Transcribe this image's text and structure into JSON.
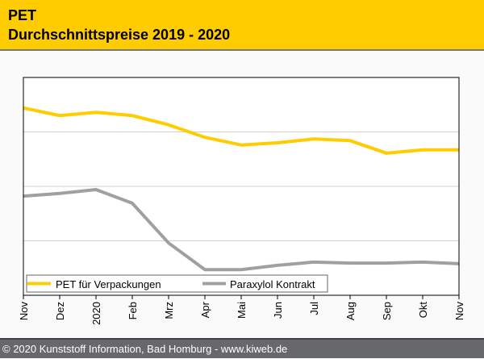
{
  "header": {
    "title": "PET",
    "subtitle": "Durchschnittspreise 2019 - 2020"
  },
  "footer": {
    "text": "© 2020 Kunststoff Information, Bad Homburg - www.kiweb.de"
  },
  "chart_data": {
    "type": "line",
    "title": "PET Durchschnittspreise 2019 - 2020",
    "xlabel": "",
    "ylabel": "",
    "categories": [
      "Nov",
      "Dez",
      "2020",
      "Feb",
      "Mrz",
      "Apr",
      "Mai",
      "Jun",
      "Jul",
      "Aug",
      "Sep",
      "Okt",
      "Nov"
    ],
    "ylim": [
      0,
      4
    ],
    "grid": true,
    "legend": "bottom-left",
    "series": [
      {
        "name": "PET für Verpackungen",
        "color": "#ffcc00",
        "values": [
          3.44,
          3.3,
          3.36,
          3.3,
          3.13,
          2.9,
          2.76,
          2.8,
          2.87,
          2.84,
          2.61,
          2.67,
          2.67
        ]
      },
      {
        "name": "Paraxylol Kontrakt",
        "color": "#a0a0a0",
        "values": [
          1.82,
          1.87,
          1.94,
          1.69,
          0.96,
          0.47,
          0.47,
          0.55,
          0.61,
          0.59,
          0.59,
          0.61,
          0.58
        ]
      }
    ]
  }
}
